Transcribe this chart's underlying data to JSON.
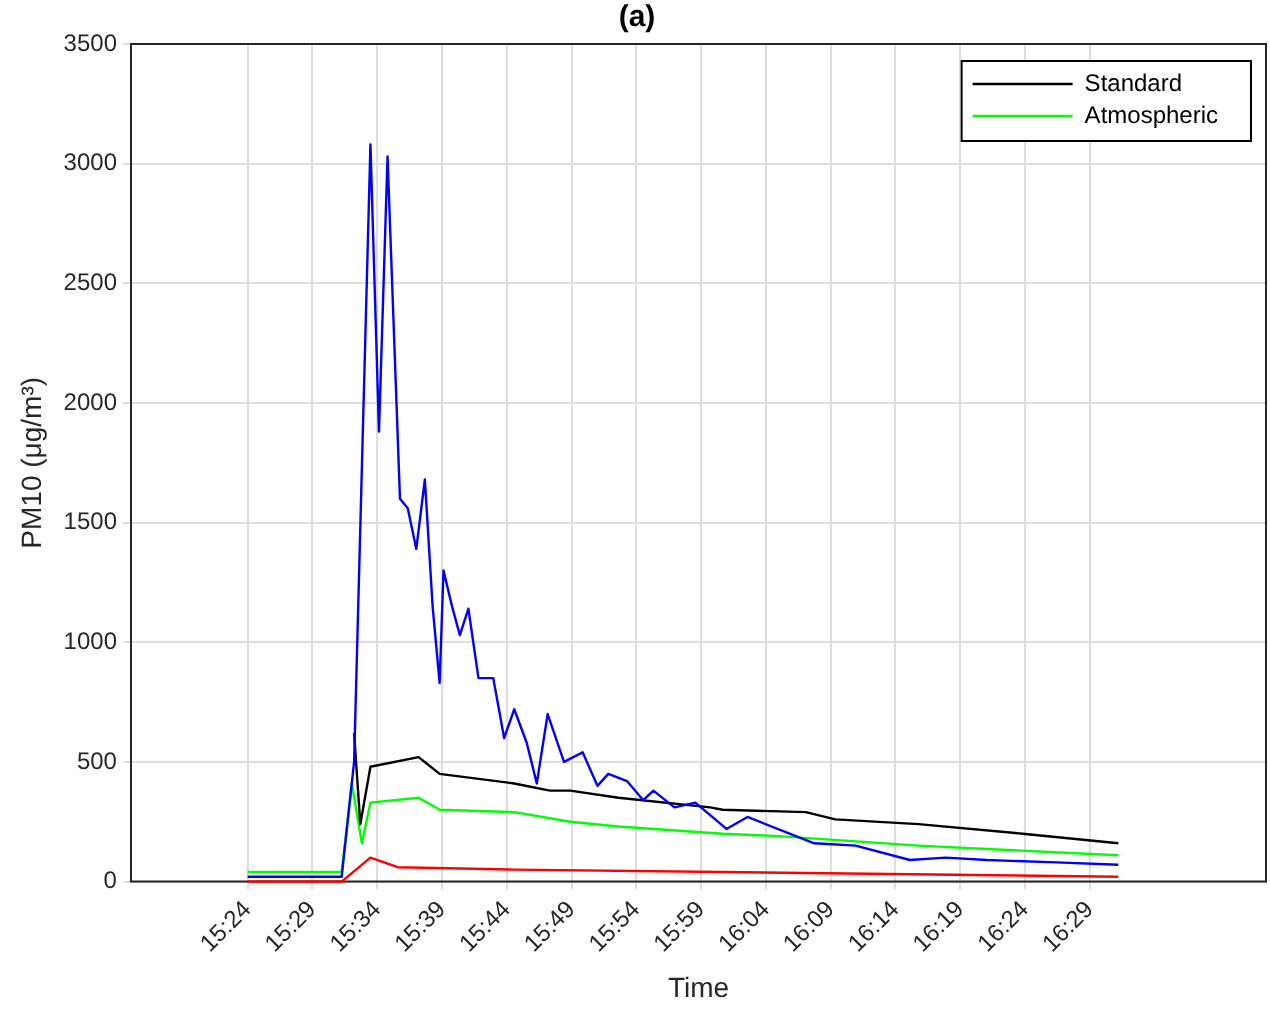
{
  "chart_data": {
    "type": "line",
    "title": "(a)",
    "xlabel": "Time",
    "ylabel": "PM10 (μg/m³)",
    "xlim": [
      15.25,
      16.71
    ],
    "ylim": [
      0,
      3500
    ],
    "yticks": [
      0,
      500,
      1000,
      1500,
      2000,
      2500,
      3000,
      3500
    ],
    "xticks": [
      {
        "value": 15.4,
        "label": "15:24"
      },
      {
        "value": 15.4833,
        "label": "15:29"
      },
      {
        "value": 15.5667,
        "label": "15:34"
      },
      {
        "value": 15.65,
        "label": "15:39"
      },
      {
        "value": 15.7333,
        "label": "15:44"
      },
      {
        "value": 15.8167,
        "label": "15:49"
      },
      {
        "value": 15.9,
        "label": "15:54"
      },
      {
        "value": 15.9833,
        "label": "15:59"
      },
      {
        "value": 16.0667,
        "label": "16:04"
      },
      {
        "value": 16.15,
        "label": "16:09"
      },
      {
        "value": 16.2333,
        "label": "16:14"
      },
      {
        "value": 16.3167,
        "label": "16:19"
      },
      {
        "value": 16.4,
        "label": "16:24"
      },
      {
        "value": 16.4833,
        "label": "16:29"
      }
    ],
    "grid": true,
    "legend": "top right",
    "marker": "none",
    "line_style": "solid",
    "series": [
      {
        "color": "#0000ff",
        "x": [
          15.4,
          15.521,
          15.537,
          15.558,
          15.569,
          15.58,
          15.596,
          15.606,
          15.617,
          15.628,
          15.638,
          15.647,
          15.652,
          15.663,
          15.673,
          15.684,
          15.697,
          15.716,
          15.73,
          15.743,
          15.759,
          15.772,
          15.786,
          15.807,
          15.831,
          15.85,
          15.864,
          15.888,
          15.909,
          15.922,
          15.949,
          15.976,
          16.016,
          16.043,
          16.129,
          16.182,
          16.252,
          16.298,
          16.351,
          16.44,
          16.52
        ],
        "values": [
          20,
          20,
          500,
          3080,
          1880,
          3030,
          1600,
          1560,
          1390,
          1680,
          1150,
          830,
          1300,
          1150,
          1030,
          1140,
          850,
          850,
          600,
          720,
          580,
          410,
          700,
          500,
          540,
          400,
          450,
          420,
          340,
          380,
          310,
          330,
          220,
          270,
          160,
          150,
          90,
          100,
          90,
          80,
          70
        ]
      },
      {
        "color": "#ff0000",
        "x": [
          15.4,
          15.521,
          15.558,
          15.593,
          15.743,
          16.011,
          16.52
        ],
        "values": [
          0,
          0,
          100,
          60,
          50,
          40,
          20
        ]
      },
      {
        "name": "Standard",
        "color": "#000000",
        "x": [
          15.537,
          15.545,
          15.558,
          15.62,
          15.647,
          15.743,
          15.789,
          15.815,
          15.877,
          15.995,
          16.011,
          16.118,
          16.156,
          16.263,
          16.397,
          16.52
        ],
        "values": [
          620,
          240,
          480,
          520,
          450,
          410,
          380,
          380,
          350,
          310,
          300,
          290,
          260,
          240,
          200,
          160
        ]
      },
      {
        "name": "Atmospheric",
        "color": "#00ff00",
        "x": [
          15.4,
          15.521,
          15.534,
          15.547,
          15.558,
          15.62,
          15.647,
          15.743,
          15.815,
          15.877,
          16.011,
          16.083,
          16.263,
          16.52
        ],
        "values": [
          40,
          40,
          410,
          160,
          330,
          350,
          300,
          290,
          250,
          230,
          200,
          190,
          150,
          110
        ]
      }
    ]
  }
}
